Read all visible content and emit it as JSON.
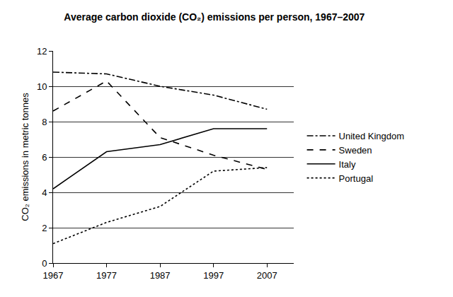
{
  "chart_data": {
    "type": "line",
    "title": "Average carbon dioxide (CO₂) emissions per person, 1967–2007",
    "y_label": "CO₂ emissions in metric tonnes",
    "x": [
      1967,
      1977,
      1987,
      1997,
      2007
    ],
    "xlim": [
      1967,
      2012
    ],
    "xticks": [
      1967,
      1977,
      1987,
      1997,
      2007
    ],
    "ylim": [
      0,
      12
    ],
    "yticks": [
      0,
      2,
      4,
      6,
      8,
      10,
      12
    ],
    "grid": true,
    "legend": "right",
    "series": [
      {
        "name": "United Kingdom",
        "color": "#000000",
        "line_style": "dashdot",
        "values": [
          10.8,
          10.7,
          10.0,
          9.5,
          8.7
        ]
      },
      {
        "name": "Sweden",
        "color": "#000000",
        "line_style": "dash",
        "values": [
          8.6,
          10.3,
          7.1,
          6.1,
          5.3
        ]
      },
      {
        "name": "Italy",
        "color": "#000000",
        "line_style": "solid",
        "values": [
          4.2,
          6.3,
          6.7,
          7.6,
          7.6
        ]
      },
      {
        "name": "Portugal",
        "color": "#000000",
        "line_style": "dot",
        "values": [
          1.1,
          2.3,
          3.2,
          5.2,
          5.4
        ]
      }
    ]
  }
}
